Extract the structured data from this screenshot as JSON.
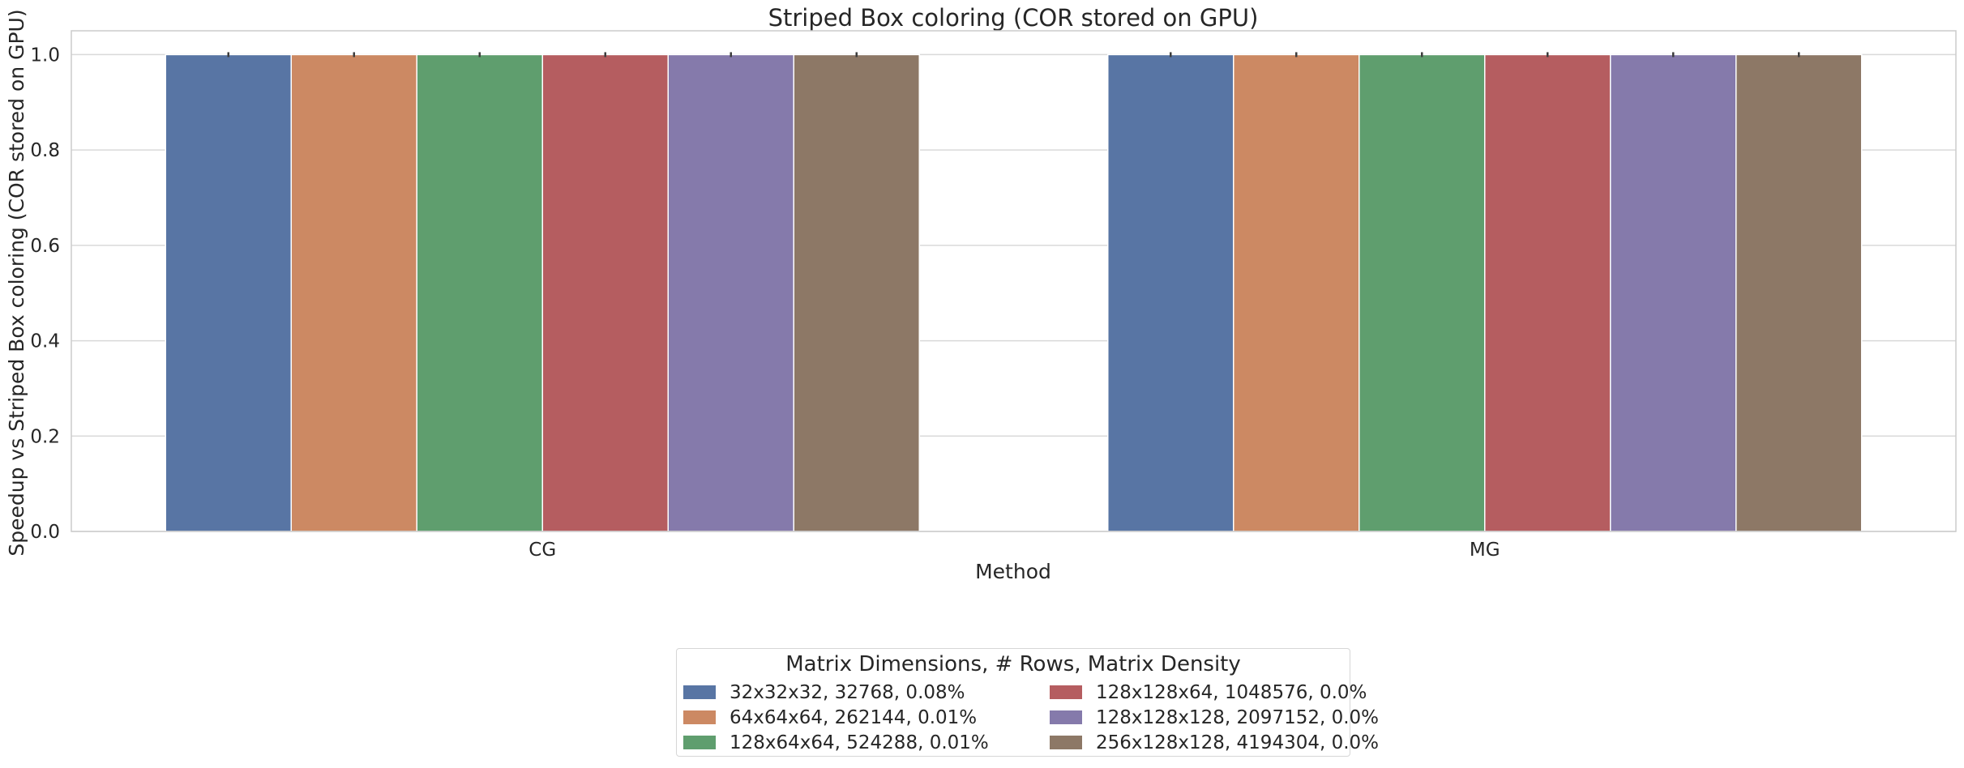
{
  "chart_data": {
    "type": "bar",
    "title": "Striped Box coloring (COR stored on GPU)",
    "xlabel": "Method",
    "ylabel": "Speedup vs Striped Box coloring (COR stored on GPU)",
    "categories": [
      "CG",
      "MG"
    ],
    "ylim": [
      0,
      1.05
    ],
    "yticks": [
      "0.0",
      "0.2",
      "0.4",
      "0.6",
      "0.8",
      "1.0"
    ],
    "grid": true,
    "error_bars": true,
    "legend_title": "Matrix Dimensions, # Rows, Matrix Density",
    "legend_position": "bottom-center",
    "series": [
      {
        "name": "32x32x32, 32768, 0.08%",
        "color": "#5875a4",
        "values": [
          1.0,
          1.0
        ]
      },
      {
        "name": "64x64x64, 262144, 0.01%",
        "color": "#cc8963",
        "values": [
          1.0,
          1.0
        ]
      },
      {
        "name": "128x64x64, 524288, 0.01%",
        "color": "#5f9e6e",
        "values": [
          1.0,
          1.0
        ]
      },
      {
        "name": "128x128x64, 1048576, 0.0%",
        "color": "#b55d60",
        "values": [
          1.0,
          1.0
        ]
      },
      {
        "name": "128x128x128, 2097152, 0.0%",
        "color": "#857aab",
        "values": [
          1.0,
          1.0
        ]
      },
      {
        "name": "256x128x128, 4194304, 0.0%",
        "color": "#8d7866",
        "values": [
          1.0,
          1.0
        ]
      }
    ]
  }
}
